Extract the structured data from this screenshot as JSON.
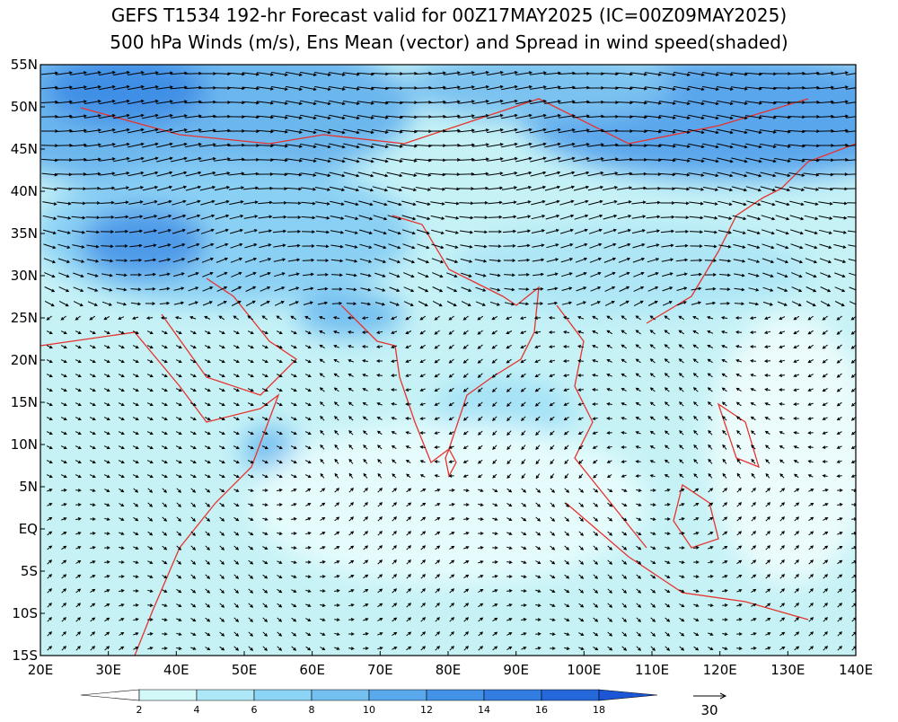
{
  "title": {
    "line1": "GEFS T1534 192-hr Forecast valid for 00Z17MAY2025 (IC=00Z09MAY2025)",
    "line2": "500 hPa Winds (m/s), Ens Mean (vector) and Spread in wind speed(shaded)"
  },
  "axes": {
    "y_labels": [
      "55N",
      "50N",
      "45N",
      "40N",
      "35N",
      "30N",
      "25N",
      "20N",
      "15N",
      "10N",
      "5N",
      "EQ",
      "5S",
      "10S",
      "15S"
    ],
    "x_labels": [
      "20E",
      "30E",
      "40E",
      "50E",
      "60E",
      "70E",
      "80E",
      "90E",
      "100E",
      "110E",
      "120E",
      "130E",
      "140E"
    ]
  },
  "colorbar": {
    "labels": [
      "2",
      "4",
      "6",
      "8",
      "10",
      "12",
      "14",
      "16",
      "18"
    ],
    "colors": [
      "#ffffff",
      "#d2f8f8",
      "#aee8f6",
      "#8cd4f6",
      "#72bff0",
      "#5aa9ec",
      "#4292e8",
      "#327ce2",
      "#2468dc",
      "#1a56d6"
    ]
  },
  "reference_vector": {
    "label": "30"
  }
}
